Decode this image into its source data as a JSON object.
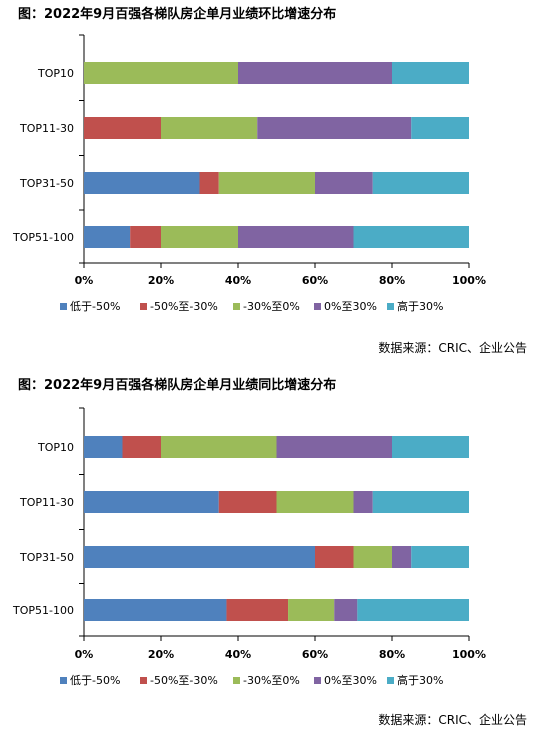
{
  "source_note": "数据来源：CRIC、企业公告",
  "colors": {
    "lt_neg50": "#4F81BD",
    "neg50_neg30": "#C0504D",
    "neg30_0": "#9BBB59",
    "0_30": "#8064A2",
    "gt30": "#4BACC6"
  },
  "chart_data": [
    {
      "type": "bar",
      "orientation": "horizontal",
      "stacked": true,
      "percent": true,
      "title": "图：2022年9月百强各梯队房企单月业绩环比增速分布",
      "categories": [
        "TOP10",
        "TOP11-30",
        "TOP31-50",
        "TOP51-100"
      ],
      "x_ticks": [
        "0%",
        "20%",
        "40%",
        "60%",
        "80%",
        "100%"
      ],
      "xlim": [
        0,
        100
      ],
      "legend_position": "bottom",
      "grid": false,
      "series": [
        {
          "name": "低于-50%",
          "color_key": "lt_neg50",
          "values": [
            0,
            0,
            30,
            12
          ]
        },
        {
          "name": "-50%至-30%",
          "color_key": "neg50_neg30",
          "values": [
            0,
            20,
            5,
            8
          ]
        },
        {
          "name": "-30%至0%",
          "color_key": "neg30_0",
          "values": [
            40,
            25,
            25,
            20
          ]
        },
        {
          "name": "0%至30%",
          "color_key": "0_30",
          "values": [
            40,
            40,
            15,
            30
          ]
        },
        {
          "name": "高于30%",
          "color_key": "gt30",
          "values": [
            20,
            15,
            25,
            30
          ]
        }
      ]
    },
    {
      "type": "bar",
      "orientation": "horizontal",
      "stacked": true,
      "percent": true,
      "title": "图：2022年9月百强各梯队房企单月业绩同比增速分布",
      "categories": [
        "TOP10",
        "TOP11-30",
        "TOP31-50",
        "TOP51-100"
      ],
      "x_ticks": [
        "0%",
        "20%",
        "40%",
        "60%",
        "80%",
        "100%"
      ],
      "xlim": [
        0,
        100
      ],
      "legend_position": "bottom",
      "grid": false,
      "series": [
        {
          "name": "低于-50%",
          "color_key": "lt_neg50",
          "values": [
            10,
            35,
            60,
            37
          ]
        },
        {
          "name": "-50%至-30%",
          "color_key": "neg50_neg30",
          "values": [
            10,
            15,
            10,
            16
          ]
        },
        {
          "name": "-30%至0%",
          "color_key": "neg30_0",
          "values": [
            30,
            20,
            10,
            12
          ]
        },
        {
          "name": "0%至30%",
          "color_key": "0_30",
          "values": [
            30,
            5,
            5,
            6
          ]
        },
        {
          "name": "高于30%",
          "color_key": "gt30",
          "values": [
            20,
            25,
            15,
            29
          ]
        }
      ]
    }
  ]
}
